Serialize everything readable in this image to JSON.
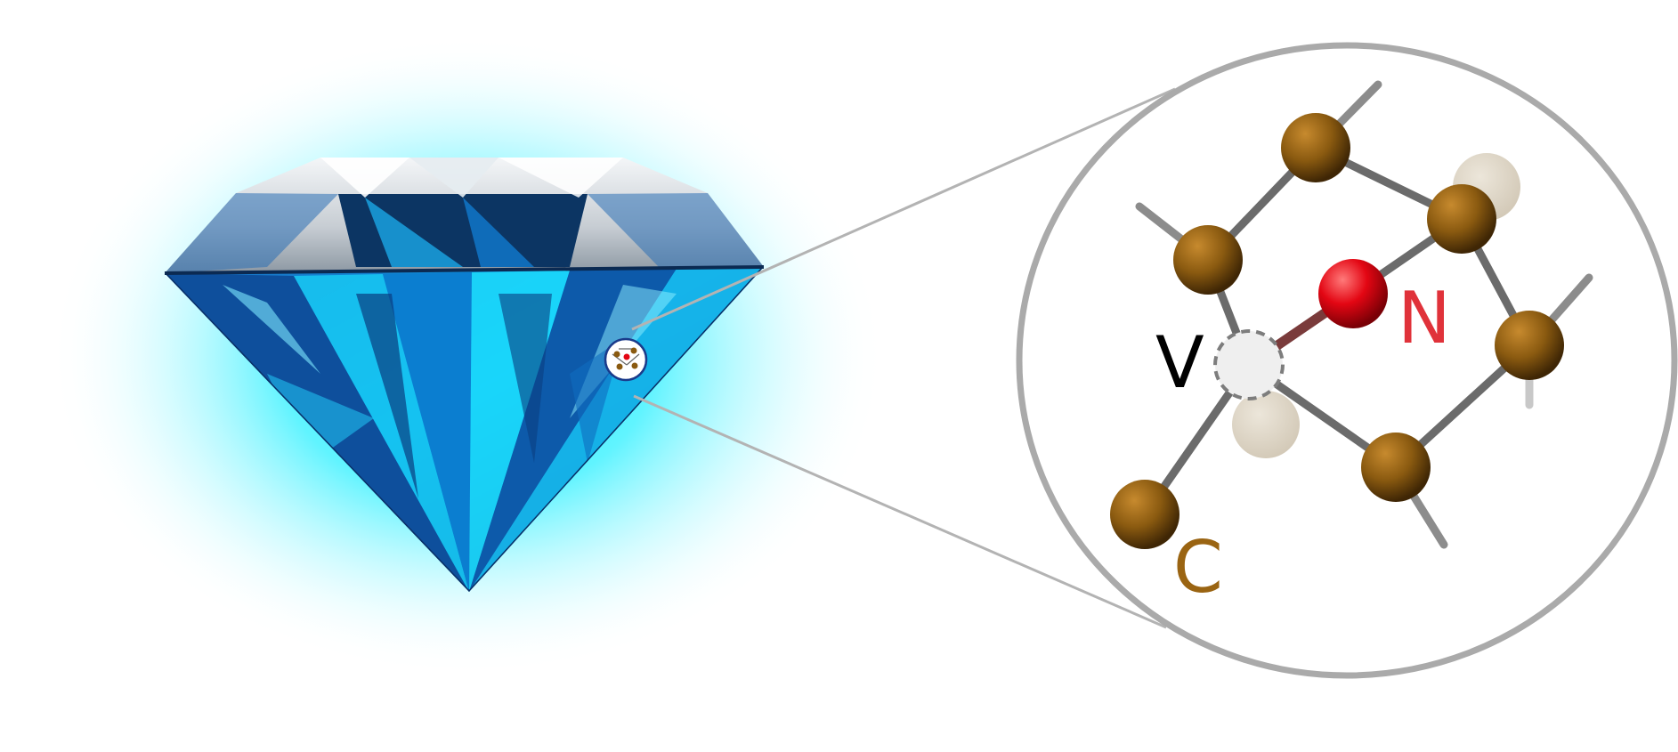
{
  "labels": {
    "vacancy": "V",
    "nitrogen": "N",
    "carbon": "C"
  },
  "colors": {
    "carbon": "#8a5a10",
    "nitrogen": "#e30613",
    "vacancy": "#eeeeee",
    "bond": "#6b6b6b",
    "vacancy_bond": "#7a3b3b",
    "label_v": "#000000",
    "label_n": "#e0323a",
    "label_c": "#9a6412",
    "glow": "#00e5ff",
    "zoom_ring": "#aaaaaa"
  },
  "icons": {
    "gem": "diamond-icon",
    "zoom": "magnifier-lens-icon"
  }
}
